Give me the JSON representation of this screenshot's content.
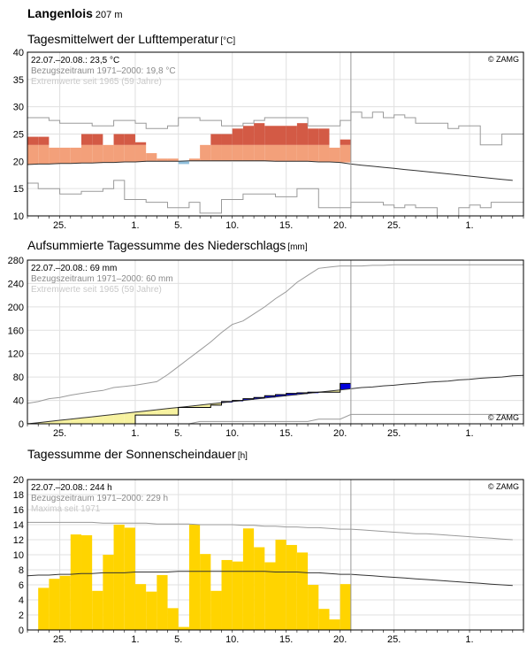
{
  "station": {
    "name": "Langenlois",
    "elevation": "207 m"
  },
  "colors": {
    "frame": "#000000",
    "grid": "#e0e0e0",
    "ref_line": "#333333",
    "extreme_line": "#9a9a9a",
    "now_line": "#999999",
    "temp_above": "#d35a45",
    "temp_base": "#f3a07a",
    "temp_max": "#a0141e",
    "temp_below": "#8fbfdc",
    "precip_excess": "#0000dd",
    "precip_deficit": "#f7f2a0",
    "precip_line": "#000000",
    "sun_bar": "#ffd400"
  },
  "panels": [
    {
      "id": "temperature",
      "title": "Tagesmittelwert der Lufttemperatur",
      "unit": "[°C]",
      "legend": [
        "22.07.–20.08.: 23,5 °C",
        "Bezugszeitraum 1971–2000: 19,8 °C",
        "Extremwerte seit 1965 (59 Jahre)"
      ],
      "credit": "© ZAMG",
      "credit_pos": "top"
    },
    {
      "id": "precipitation",
      "title": "Aufsummierte Tagessumme des Niederschlags",
      "unit": "[mm]",
      "legend": [
        "22.07.–20.08.: 69 mm",
        "Bezugszeitraum 1971–2000: 60 mm",
        "Extremwerte seit 1965 (59 Jahre)"
      ],
      "credit": "© ZAMG",
      "credit_pos": "bottom"
    },
    {
      "id": "sunshine",
      "title": "Tagessumme der Sonnenscheindauer",
      "unit": "[h]",
      "legend": [
        "22.07.–20.08.: 244 h",
        "Bezugszeitraum 1971–2000: 229 h",
        "Maxima seit 1971"
      ],
      "credit": "© ZAMG",
      "credit_pos": "top"
    }
  ],
  "chart_data": [
    {
      "type": "bar",
      "panel": "temperature",
      "x_ticks": [
        "25.",
        "1.",
        "5.",
        "10.",
        "15.",
        "20.",
        "25.",
        "1."
      ],
      "ylim": [
        10,
        40
      ],
      "y_ticks": [
        "10",
        "15",
        "20",
        "25",
        "30",
        "35",
        "40"
      ],
      "grid": true,
      "series": [
        {
          "name": "Tagesmittel 22.07.–20.08.",
          "values": [
            24.5,
            24.5,
            22.5,
            22.5,
            22.5,
            25.0,
            25.0,
            23.0,
            25.0,
            25.0,
            23.5,
            21.5,
            20.5,
            20.5,
            19.5,
            20.5,
            23.0,
            25.0,
            25.0,
            26.0,
            26.5,
            27.0,
            26.5,
            26.5,
            26.5,
            27.0,
            26.0,
            26.0,
            22.5,
            24.0
          ]
        },
        {
          "name": "Bezugszeitraum 1971–2000",
          "values": [
            19.4,
            19.5,
            19.5,
            19.6,
            19.6,
            19.7,
            19.7,
            19.8,
            19.8,
            19.9,
            19.9,
            20.0,
            20.0,
            20.0,
            20.0,
            20.1,
            20.1,
            20.1,
            20.1,
            20.1,
            20.1,
            20.1,
            20.1,
            20.0,
            20.0,
            20.0,
            20.0,
            19.9,
            19.9,
            19.8,
            19.5,
            19.3,
            19.1,
            18.9,
            18.7,
            18.5,
            18.3,
            18.1,
            17.9,
            17.7,
            17.5,
            17.3,
            17.1,
            16.9,
            16.7,
            16.5
          ]
        },
        {
          "name": "Maximum",
          "values": [
            28.0,
            28.0,
            27.5,
            27.0,
            27.0,
            27.0,
            26.5,
            26.5,
            27.5,
            27.5,
            27.0,
            26.0,
            26.0,
            26.5,
            28.0,
            28.0,
            27.5,
            27.5,
            26.5,
            26.5,
            27.0,
            27.5,
            28.0,
            28.0,
            28.0,
            28.0,
            26.5,
            26.5,
            26.5,
            27.5,
            29.0,
            28.0,
            29.0,
            28.0,
            28.5,
            28.0,
            27.0,
            27.0,
            27.0,
            26.0,
            26.5,
            26.5,
            23.0,
            23.0,
            25.0,
            25.0
          ]
        },
        {
          "name": "Minimum",
          "values": [
            16.0,
            15.0,
            15.0,
            14.0,
            14.0,
            14.5,
            14.5,
            15.0,
            16.5,
            13.0,
            13.0,
            12.5,
            12.5,
            11.5,
            11.5,
            12.5,
            10.5,
            10.5,
            13.0,
            13.0,
            14.0,
            14.0,
            14.0,
            13.5,
            13.5,
            15.0,
            15.0,
            11.5,
            11.5,
            11.5,
            12.5,
            12.5,
            12.5,
            12.0,
            11.5,
            12.0,
            11.5,
            11.5,
            10.0,
            10.0,
            11.5,
            12.0,
            11.5,
            12.5,
            12.5,
            12.5
          ]
        }
      ]
    },
    {
      "type": "line",
      "panel": "precipitation",
      "x_ticks": [
        "25.",
        "1.",
        "5.",
        "10.",
        "15.",
        "20.",
        "25.",
        "1."
      ],
      "ylim": [
        0,
        280
      ],
      "y_ticks": [
        "0",
        "40",
        "80",
        "120",
        "160",
        "200",
        "240",
        "280"
      ],
      "grid": true,
      "series": [
        {
          "name": "Summe 22.07.–20.08.",
          "values": [
            0,
            0,
            0,
            0,
            0,
            0,
            0,
            0,
            0,
            0,
            0,
            15,
            15,
            15,
            15,
            28,
            28,
            28,
            32,
            38,
            40,
            43,
            45,
            48,
            50,
            52,
            53,
            54,
            54,
            54,
            69
          ]
        },
        {
          "name": "Bezugszeitraum 1971–2000",
          "values": [
            0,
            2,
            4,
            6,
            8,
            10,
            12,
            14,
            16,
            18,
            20,
            22,
            24,
            26,
            28,
            30,
            32,
            34,
            36,
            38,
            40,
            42,
            44,
            46,
            48,
            50,
            52,
            54,
            56,
            58,
            60,
            62,
            63,
            65,
            66,
            68,
            69,
            71,
            72,
            73,
            75,
            76,
            78,
            79,
            80,
            82,
            83
          ]
        },
        {
          "name": "Maximum",
          "values": [
            35,
            38,
            43,
            45,
            49,
            52,
            55,
            57,
            62,
            64,
            66,
            69,
            72,
            84,
            98,
            112,
            126,
            140,
            156,
            170,
            176,
            188,
            200,
            214,
            226,
            242,
            254,
            266,
            268,
            270,
            270,
            270,
            271,
            271,
            272,
            272,
            272,
            272,
            272,
            272,
            272,
            272,
            272,
            272,
            272,
            272,
            272
          ]
        },
        {
          "name": "Minimum",
          "values": [
            0,
            0,
            0,
            0,
            0,
            0,
            0,
            0,
            0,
            0,
            0,
            0,
            0,
            0,
            0,
            0,
            4,
            4,
            4,
            4,
            4,
            4,
            4,
            4,
            4,
            4,
            4,
            8,
            8,
            8,
            16,
            16,
            16,
            16,
            16,
            16,
            16,
            16,
            16,
            16,
            16,
            16,
            16,
            16,
            16,
            16,
            16
          ]
        }
      ]
    },
    {
      "type": "bar",
      "panel": "sunshine",
      "x_ticks": [
        "25.",
        "1.",
        "5.",
        "10.",
        "15.",
        "20.",
        "25.",
        "1."
      ],
      "ylim": [
        0,
        20
      ],
      "y_ticks": [
        "0",
        "2",
        "4",
        "6",
        "8",
        "10",
        "12",
        "14",
        "16",
        "18",
        "20"
      ],
      "grid": true,
      "series": [
        {
          "name": "Tagessumme 22.07.–20.08.",
          "values": [
            5.6,
            6.8,
            7.2,
            12.7,
            12.6,
            5.2,
            10.0,
            14.0,
            13.6,
            6.1,
            5.1,
            7.3,
            2.9,
            0.4,
            14.0,
            10.1,
            5.2,
            9.3,
            9.1,
            13.5,
            11.0,
            9.0,
            12.0,
            11.3,
            10.3,
            6.0,
            2.8,
            1.4,
            6.1
          ]
        },
        {
          "name": "Bezugszeitraum 1971–2000",
          "values": [
            7.2,
            7.3,
            7.3,
            7.4,
            7.4,
            7.5,
            7.5,
            7.6,
            7.6,
            7.6,
            7.7,
            7.7,
            7.7,
            7.7,
            7.8,
            7.8,
            7.8,
            7.8,
            7.8,
            7.8,
            7.8,
            7.8,
            7.8,
            7.7,
            7.7,
            7.7,
            7.6,
            7.6,
            7.5,
            7.4,
            7.4,
            7.3,
            7.2,
            7.1,
            7.0,
            6.9,
            6.8,
            6.7,
            6.6,
            6.5,
            6.4,
            6.3,
            6.2,
            6.1,
            6.0,
            5.9
          ]
        },
        {
          "name": "Maxima seit 1971",
          "values": [
            14.3,
            14.3,
            14.3,
            14.3,
            14.3,
            14.3,
            14.3,
            14.2,
            14.2,
            14.2,
            14.2,
            14.2,
            14.1,
            14.1,
            14.1,
            14.1,
            14.0,
            14.0,
            14.0,
            14.0,
            13.9,
            13.9,
            13.8,
            13.8,
            13.7,
            13.7,
            13.6,
            13.6,
            13.5,
            13.4,
            13.4,
            13.3,
            13.2,
            13.1,
            13.0,
            12.9,
            12.8,
            12.8,
            12.7,
            12.6,
            12.5,
            12.4,
            12.3,
            12.2,
            12.1,
            12.0
          ]
        }
      ]
    }
  ]
}
